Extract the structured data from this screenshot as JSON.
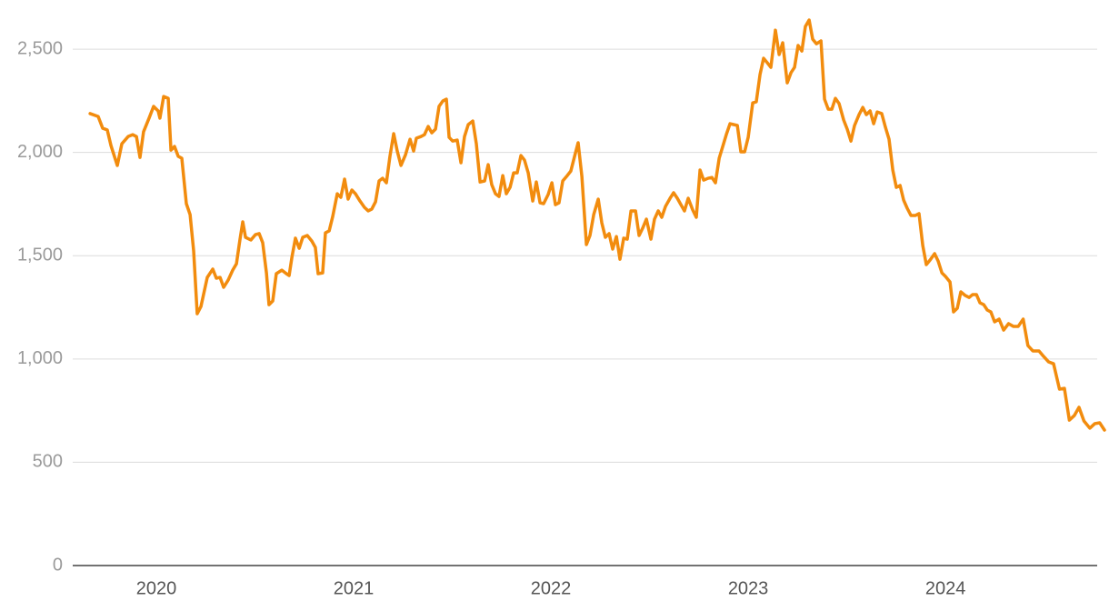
{
  "chart_data": {
    "type": "line",
    "x": [
      2019.664,
      2019.705,
      2019.728,
      2019.751,
      2019.77,
      2019.802,
      2019.825,
      2019.857,
      2019.88,
      2019.899,
      2019.917,
      2019.935,
      2019.963,
      2019.986,
      2020.009,
      2020.018,
      2020.037,
      2020.06,
      2020.074,
      2020.092,
      2020.111,
      2020.129,
      2020.152,
      2020.171,
      2020.189,
      2020.207,
      2020.226,
      2020.258,
      2020.286,
      2020.304,
      2020.323,
      2020.341,
      2020.364,
      2020.387,
      2020.406,
      2020.424,
      2020.438,
      2020.452,
      2020.479,
      2020.502,
      2020.521,
      2020.539,
      2020.558,
      2020.571,
      2020.59,
      2020.608,
      2020.636,
      2020.659,
      2020.673,
      2020.687,
      2020.705,
      2020.724,
      2020.742,
      2020.765,
      2020.788,
      2020.806,
      2020.82,
      2020.843,
      2020.857,
      2020.876,
      2020.894,
      2020.917,
      2020.935,
      2020.954,
      2020.972,
      2020.991,
      2021.009,
      2021.032,
      2021.055,
      2021.074,
      2021.092,
      2021.111,
      2021.129,
      2021.147,
      2021.166,
      2021.184,
      2021.203,
      2021.221,
      2021.24,
      2021.263,
      2021.286,
      2021.304,
      2021.318,
      2021.341,
      2021.359,
      2021.378,
      2021.396,
      2021.415,
      2021.433,
      2021.452,
      2021.47,
      2021.484,
      2021.502,
      2021.525,
      2021.544,
      2021.562,
      2021.581,
      2021.604,
      2021.622,
      2021.641,
      2021.664,
      2021.682,
      2021.7,
      2021.719,
      2021.737,
      2021.756,
      2021.774,
      2021.793,
      2021.811,
      2021.829,
      2021.848,
      2021.866,
      2021.885,
      2021.908,
      2021.926,
      2021.945,
      2021.963,
      2021.986,
      2022.005,
      2022.023,
      2022.041,
      2022.06,
      2022.083,
      2022.101,
      2022.12,
      2022.138,
      2022.157,
      2022.18,
      2022.198,
      2022.217,
      2022.24,
      2022.258,
      2022.276,
      2022.295,
      2022.313,
      2022.332,
      2022.35,
      2022.369,
      2022.387,
      2022.406,
      2022.429,
      2022.447,
      2022.465,
      2022.484,
      2022.507,
      2022.525,
      2022.544,
      2022.562,
      2022.581,
      2022.604,
      2022.622,
      2022.641,
      2022.659,
      2022.677,
      2022.696,
      2022.719,
      2022.737,
      2022.756,
      2022.774,
      2022.797,
      2022.816,
      2022.834,
      2022.853,
      2022.871,
      2022.889,
      2022.908,
      2022.926,
      2022.945,
      2022.963,
      2022.982,
      2023.0,
      2023.023,
      2023.041,
      2023.06,
      2023.078,
      2023.097,
      2023.115,
      2023.138,
      2023.157,
      2023.175,
      2023.198,
      2023.217,
      2023.235,
      2023.253,
      2023.272,
      2023.29,
      2023.309,
      2023.327,
      2023.346,
      2023.369,
      2023.387,
      2023.406,
      2023.424,
      2023.442,
      2023.461,
      2023.484,
      2023.502,
      2023.521,
      2023.539,
      2023.562,
      2023.581,
      2023.599,
      2023.618,
      2023.636,
      2023.654,
      2023.677,
      2023.696,
      2023.714,
      2023.733,
      2023.751,
      2023.77,
      2023.788,
      2023.806,
      2023.825,
      2023.848,
      2023.866,
      2023.885,
      2023.903,
      2023.922,
      2023.945,
      2023.963,
      2023.982,
      2024.0,
      2024.023,
      2024.041,
      2024.06,
      2024.078,
      2024.101,
      2024.12,
      2024.138,
      2024.157,
      2024.175,
      2024.194,
      2024.212,
      2024.23,
      2024.249,
      2024.272,
      2024.295,
      2024.32,
      2024.344,
      2024.369,
      2024.394,
      2024.418,
      2024.443,
      2024.474,
      2024.498,
      2024.523,
      2024.548,
      2024.578,
      2024.603,
      2024.628,
      2024.653,
      2024.677,
      2024.702,
      2024.732,
      2024.757,
      2024.782,
      2024.806
    ],
    "values": [
      2188,
      2174,
      2117,
      2109,
      2033,
      1937,
      2042,
      2077,
      2086,
      2077,
      1976,
      2100,
      2166,
      2223,
      2201,
      2166,
      2271,
      2262,
      2011,
      2029,
      1981,
      1972,
      1752,
      1699,
      1523,
      1219,
      1254,
      1395,
      1435,
      1391,
      1395,
      1347,
      1382,
      1430,
      1461,
      1580,
      1664,
      1589,
      1576,
      1602,
      1607,
      1563,
      1417,
      1263,
      1281,
      1413,
      1430,
      1413,
      1404,
      1492,
      1585,
      1536,
      1589,
      1598,
      1571,
      1540,
      1413,
      1417,
      1611,
      1620,
      1690,
      1800,
      1783,
      1871,
      1774,
      1818,
      1800,
      1765,
      1734,
      1717,
      1726,
      1761,
      1862,
      1875,
      1853,
      1981,
      2091,
      2007,
      1937,
      1989,
      2064,
      2007,
      2069,
      2077,
      2086,
      2126,
      2095,
      2113,
      2223,
      2249,
      2258,
      2073,
      2055,
      2060,
      1950,
      2077,
      2135,
      2152,
      2042,
      1857,
      1862,
      1941,
      1844,
      1800,
      1787,
      1888,
      1800,
      1831,
      1901,
      1901,
      1985,
      1963,
      1901,
      1765,
      1857,
      1756,
      1752,
      1796,
      1853,
      1747,
      1756,
      1862,
      1888,
      1910,
      1981,
      2047,
      1884,
      1554,
      1598,
      1699,
      1774,
      1659,
      1589,
      1607,
      1532,
      1593,
      1483,
      1585,
      1580,
      1717,
      1717,
      1598,
      1633,
      1677,
      1580,
      1677,
      1717,
      1686,
      1739,
      1778,
      1805,
      1778,
      1747,
      1717,
      1778,
      1721,
      1686,
      1915,
      1866,
      1875,
      1879,
      1853,
      1972,
      2029,
      2086,
      2139,
      2135,
      2131,
      2003,
      2003,
      2073,
      2240,
      2245,
      2377,
      2456,
      2434,
      2412,
      2592,
      2474,
      2531,
      2337,
      2386,
      2412,
      2518,
      2491,
      2610,
      2641,
      2548,
      2526,
      2540,
      2258,
      2209,
      2209,
      2262,
      2236,
      2157,
      2113,
      2055,
      2130,
      2183,
      2218,
      2183,
      2201,
      2139,
      2196,
      2188,
      2121,
      2064,
      1915,
      1831,
      1840,
      1769,
      1730,
      1695,
      1695,
      1704,
      1549,
      1457,
      1479,
      1510,
      1474,
      1417,
      1400,
      1373,
      1228,
      1246,
      1325,
      1307,
      1298,
      1312,
      1312,
      1272,
      1263,
      1237,
      1228,
      1180,
      1193,
      1140,
      1171,
      1158,
      1158,
      1193,
      1065,
      1039,
      1039,
      1012,
      986,
      977,
      854,
      858,
      704,
      726,
      766,
      700,
      665,
      687,
      691,
      656
    ],
    "color": "#f28c0e",
    "xlim": [
      2019.576,
      2024.806
    ],
    "xticks": [
      2020,
      2021,
      2022,
      2023,
      2024
    ],
    "ylim": [
      0,
      2650
    ],
    "yticks": [
      0,
      500,
      {
        "value": 1000,
        "label": "1,000"
      },
      {
        "value": 1500,
        "label": "1,500"
      },
      {
        "value": 2000,
        "label": "2,000"
      },
      {
        "value": 2500,
        "label": "2,500"
      }
    ],
    "grid": true
  }
}
